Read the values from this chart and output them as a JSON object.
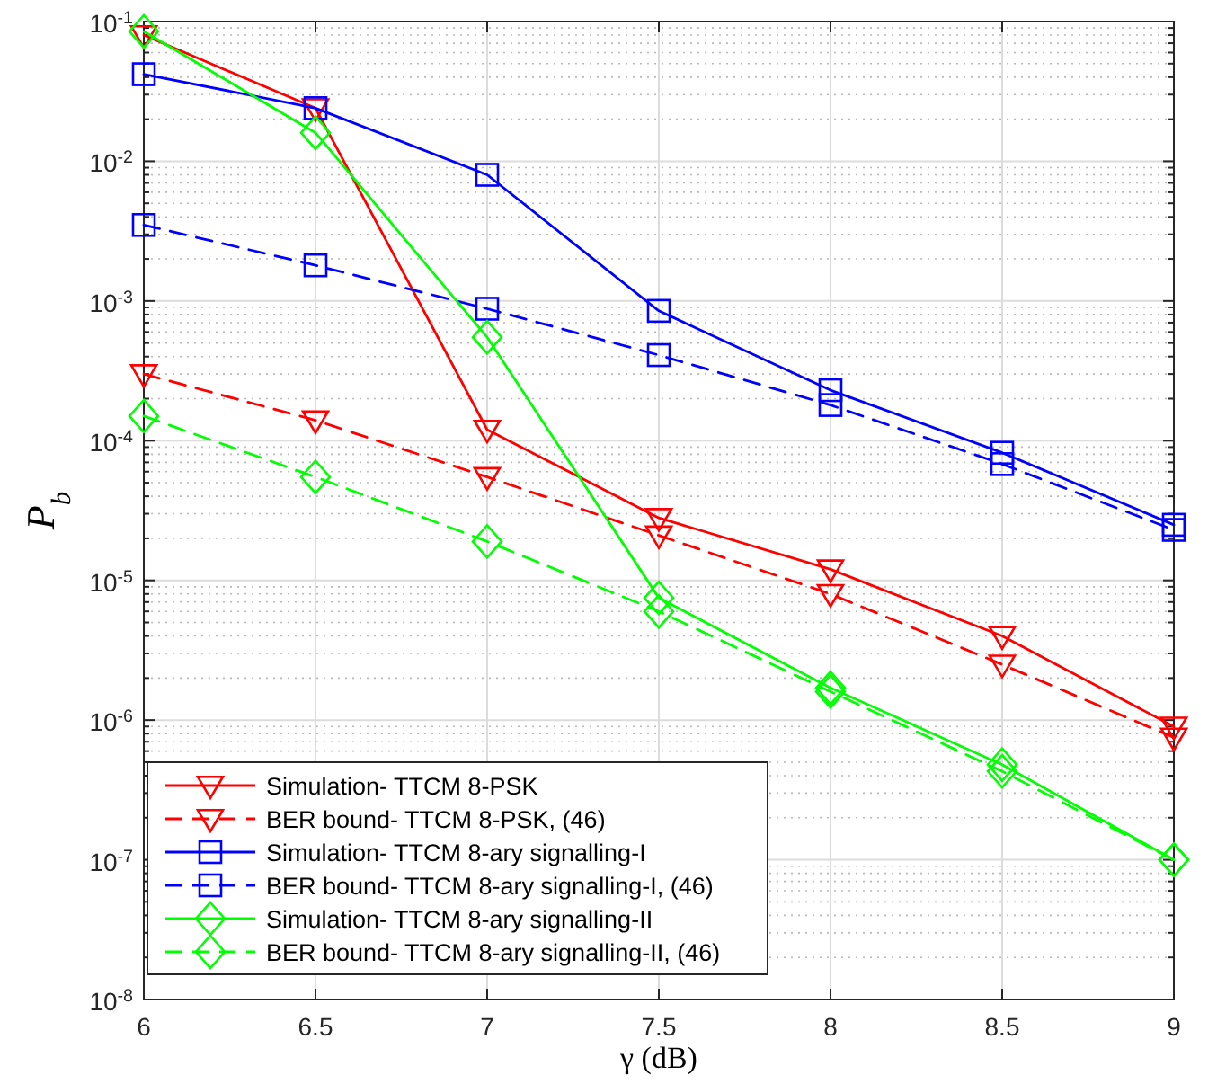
{
  "chart_data": {
    "type": "line",
    "xlabel": "γ (dB)",
    "ylabel": "P$_{b}$",
    "log": "y",
    "grid": true,
    "legend": "bottom left",
    "x": [
      6,
      6.5,
      7,
      7.5,
      8,
      8.5,
      9
    ],
    "xlim": [
      6,
      9
    ],
    "xticks": [
      6,
      6.5,
      7,
      7.5,
      8,
      8.5,
      9
    ],
    "ylim": [
      1e-08,
      0.1
    ],
    "yticks": [
      {
        "value": 1e-08,
        "label": "10$^{-8}$"
      },
      {
        "value": 1e-07,
        "label": "10$^{-7}$"
      },
      {
        "value": 1e-06,
        "label": "10$^{-6}$"
      },
      {
        "value": 1e-05,
        "label": "10$^{-5}$"
      },
      {
        "value": 0.0001,
        "label": "10$^{-4}$"
      },
      {
        "value": 0.001,
        "label": "10$^{-3}$"
      },
      {
        "value": 0.01,
        "label": "10$^{-2}$"
      },
      {
        "value": 0.1,
        "label": "10$^{-1}$"
      }
    ],
    "series": [
      {
        "name": "Simulation- TTCM 8-PSK",
        "color": "#ff0000",
        "marker": "triangle",
        "line_style": "solid",
        "values": [
          0.08,
          0.024,
          0.00012,
          2.8e-05,
          1.2e-05,
          4e-06,
          9e-07
        ]
      },
      {
        "name": "BER bound- TTCM 8-PSK, (46)",
        "color": "#ff0000",
        "marker": "triangle",
        "line_style": "dashed",
        "values": [
          0.0003,
          0.00014,
          5.5e-05,
          2.1e-05,
          8e-06,
          2.5e-06,
          7.5e-07
        ]
      },
      {
        "name": "Simulation- TTCM 8-ary signalling-I",
        "color": "#0000ff",
        "marker": "square",
        "line_style": "solid",
        "values": [
          0.042,
          0.024,
          0.008,
          0.00085,
          0.00023,
          8.2e-05,
          2.5e-05
        ]
      },
      {
        "name": "BER bound- TTCM 8-ary signalling-I, (46)",
        "color": "#0000ff",
        "marker": "square",
        "line_style": "dashed",
        "values": [
          0.0035,
          0.0018,
          0.00088,
          0.00041,
          0.00018,
          6.8e-05,
          2.3e-05
        ]
      },
      {
        "name": "Simulation- TTCM 8-ary signalling-II",
        "color": "#00ff00",
        "marker": "diamond",
        "line_style": "solid",
        "values": [
          0.085,
          0.016,
          0.00055,
          7.5e-06,
          1.7e-06,
          4.8e-07,
          1e-07
        ]
      },
      {
        "name": "BER bound- TTCM 8-ary signalling-II, (46)",
        "color": "#00ff00",
        "marker": "diamond",
        "line_style": "dashed",
        "values": [
          0.00015,
          5.5e-05,
          1.9e-05,
          6e-06,
          1.6e-06,
          4.3e-07,
          1e-07
        ]
      }
    ]
  }
}
